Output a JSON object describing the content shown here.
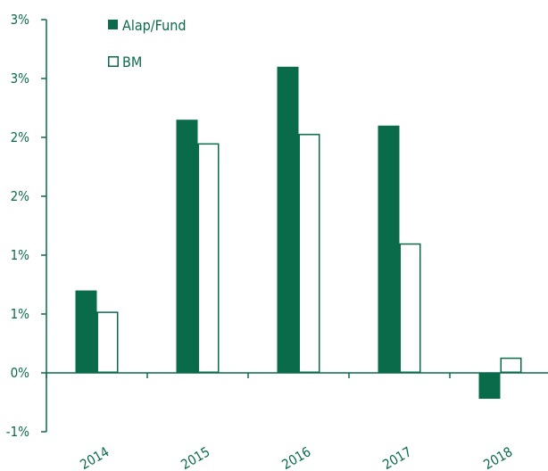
{
  "chart_data": {
    "type": "bar",
    "categories": [
      "2014",
      "2015",
      "2016",
      "2017",
      "2018"
    ],
    "series": [
      {
        "name": "Alap/Fund",
        "values": [
          0.7,
          2.15,
          2.6,
          2.1,
          -0.22
        ]
      },
      {
        "name": "BM",
        "values": [
          0.52,
          1.95,
          2.03,
          1.1,
          0.13
        ]
      }
    ],
    "ylim": [
      -0.5,
      3.0
    ],
    "y_ticks": [
      3.0,
      2.5,
      2.0,
      1.5,
      1.0,
      0.5,
      0.0,
      -0.5
    ],
    "y_tick_labels": [
      "3%",
      "3%",
      "2%",
      "2%",
      "1%",
      "1%",
      "0%",
      "-1%"
    ],
    "grid": false,
    "legend_position": "top-left",
    "colors": {
      "fund": "#0a6b4b",
      "bm_fill": "#ffffff",
      "bm_border": "#0a6b4b",
      "axis": "#0a6b4b",
      "text": "#0a6b4b"
    }
  }
}
